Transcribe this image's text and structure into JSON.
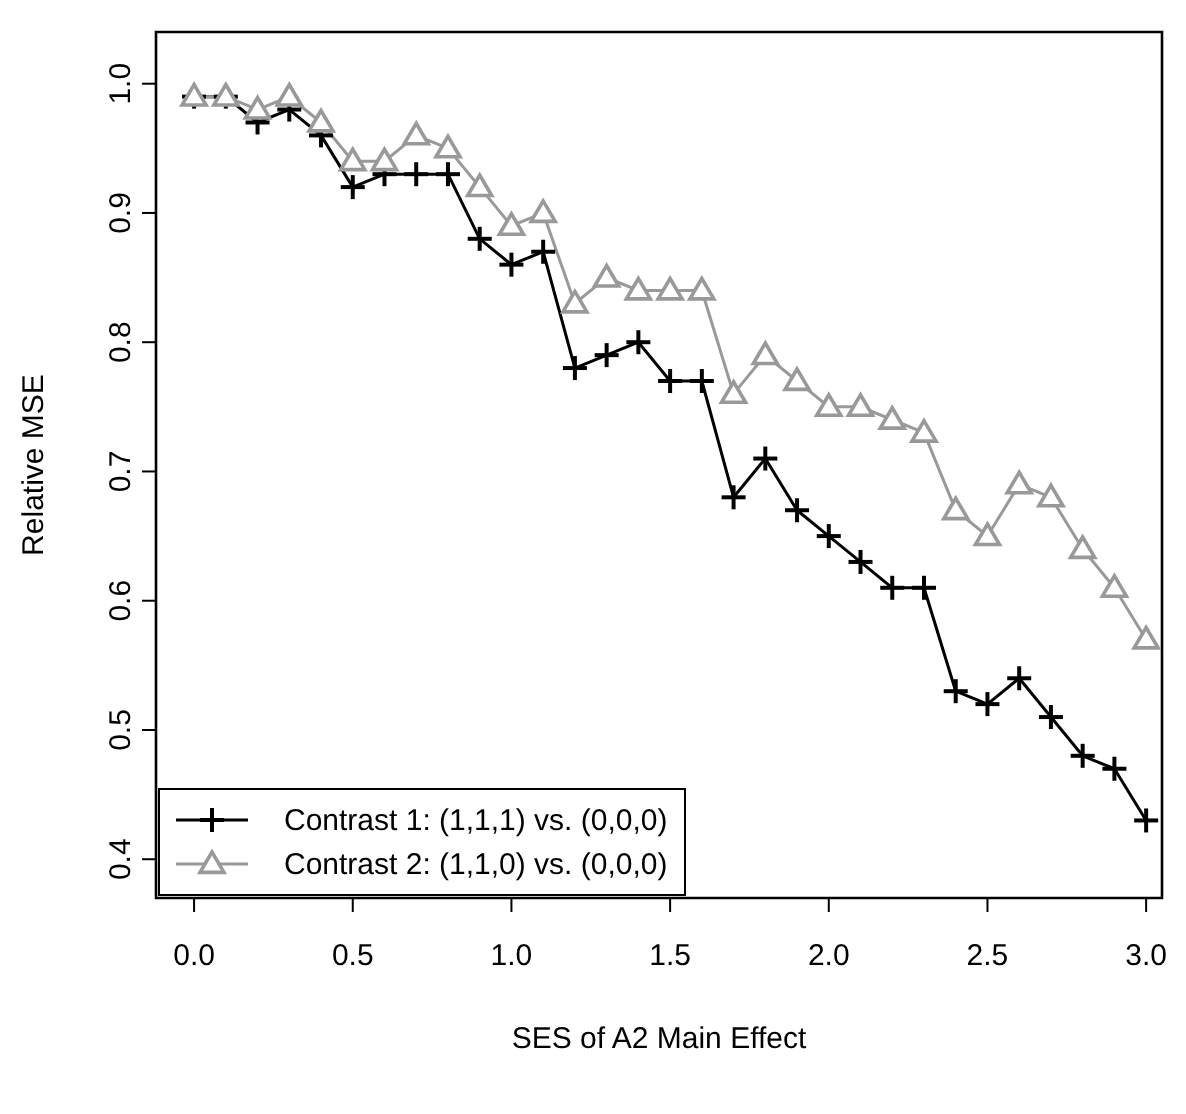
{
  "chart_data": {
    "type": "line",
    "xlabel": "SES of A2 Main Effect",
    "ylabel": "Relative MSE",
    "x": [
      0,
      0.1,
      0.2,
      0.3,
      0.4,
      0.5,
      0.6,
      0.7,
      0.8,
      0.9,
      1.0,
      1.1,
      1.2,
      1.3,
      1.4,
      1.5,
      1.6,
      1.7,
      1.8,
      1.9,
      2.0,
      2.1,
      2.2,
      2.3,
      2.4,
      2.5,
      2.6,
      2.7,
      2.8,
      2.9,
      3.0
    ],
    "series": [
      {
        "name": "Contrast 1: (1,1,1) vs. (0,0,0)",
        "color": "#000000",
        "marker": "cross",
        "values": [
          0.99,
          0.99,
          0.97,
          0.98,
          0.96,
          0.92,
          0.93,
          0.93,
          0.93,
          0.88,
          0.86,
          0.87,
          0.78,
          0.79,
          0.8,
          0.77,
          0.77,
          0.68,
          0.71,
          0.67,
          0.65,
          0.63,
          0.61,
          0.61,
          0.53,
          0.52,
          0.54,
          0.51,
          0.48,
          0.47,
          0.43
        ]
      },
      {
        "name": "Contrast 2: (1,1,0) vs. (0,0,0)",
        "color": "#999999",
        "marker": "triangle",
        "values": [
          0.99,
          0.99,
          0.98,
          0.99,
          0.97,
          0.94,
          0.94,
          0.96,
          0.95,
          0.92,
          0.89,
          0.9,
          0.83,
          0.85,
          0.84,
          0.84,
          0.84,
          0.76,
          0.79,
          0.77,
          0.75,
          0.75,
          0.74,
          0.73,
          0.67,
          0.65,
          0.69,
          0.68,
          0.64,
          0.61,
          0.57
        ]
      }
    ],
    "xlim": [
      -0.12,
      3.05
    ],
    "xticks": [
      {
        "value": 0,
        "label": "0.0"
      },
      0.5,
      {
        "value": 1,
        "label": "1.0"
      },
      1.5,
      {
        "value": 2,
        "label": "2.0"
      },
      2.5,
      {
        "value": 3,
        "label": "3.0"
      }
    ],
    "ylim": [
      0.37,
      1.04
    ],
    "yticks": [
      0.4,
      0.5,
      0.6,
      0.7,
      0.8,
      0.9,
      {
        "value": 1,
        "label": "1.0"
      }
    ],
    "grid": false,
    "legend": "bottom left",
    "line_style": "solid"
  }
}
